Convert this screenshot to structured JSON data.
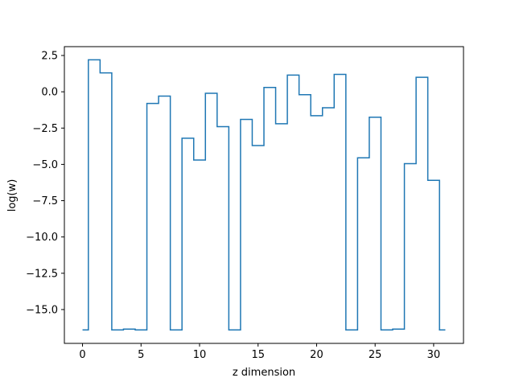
{
  "chart_data": {
    "type": "line",
    "drawstyle": "steps-mid",
    "title": "",
    "xlabel": "z dimension",
    "ylabel": "log(w)",
    "xlim": [
      -1.55,
      32.55
    ],
    "ylim": [
      -17.33,
      3.11
    ],
    "xticks": [
      0,
      5,
      10,
      15,
      20,
      25,
      30
    ],
    "yticks": [
      2.5,
      0.0,
      -2.5,
      -5.0,
      -7.5,
      -10.0,
      -12.5,
      -15.0
    ],
    "ytick_labels": [
      "2.5",
      "0.0",
      "−2.5",
      "−5.0",
      "−7.5",
      "−10.0",
      "−12.5",
      "−15.0"
    ],
    "grid": false,
    "series": [
      {
        "color": "#1f77b4",
        "x": [
          0,
          1,
          2,
          3,
          4,
          5,
          6,
          7,
          8,
          9,
          10,
          11,
          12,
          13,
          14,
          15,
          16,
          17,
          18,
          19,
          20,
          21,
          22,
          23,
          24,
          25,
          26,
          27,
          28,
          29,
          30,
          31
        ],
        "y": [
          -16.4,
          2.2,
          1.3,
          -16.4,
          -16.35,
          -16.4,
          -0.8,
          -0.3,
          -16.4,
          -3.2,
          -4.7,
          -0.1,
          -2.4,
          -16.4,
          -1.9,
          -3.7,
          0.3,
          -2.2,
          1.15,
          -0.2,
          -1.65,
          -1.1,
          1.2,
          -16.4,
          -4.55,
          -1.75,
          -16.4,
          -16.35,
          -4.95,
          1.0,
          -6.1,
          -16.4
        ]
      }
    ]
  }
}
